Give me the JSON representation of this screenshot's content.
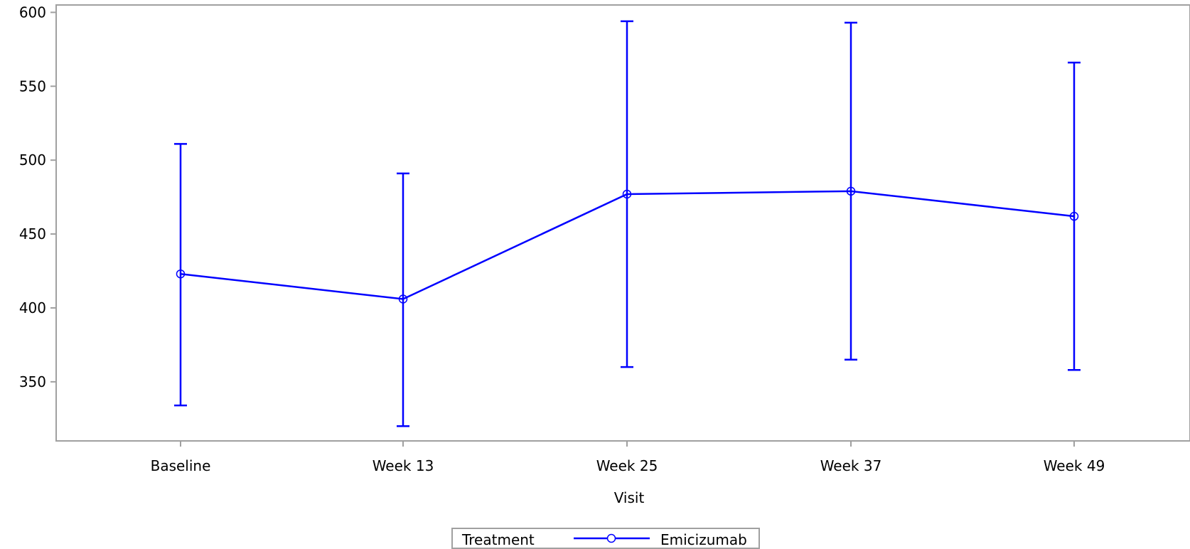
{
  "chart_data": {
    "type": "line",
    "xlabel": "Visit",
    "ylabel": "",
    "categories": [
      "Baseline",
      "Week 13",
      "Week 25",
      "Week 37",
      "Week 49"
    ],
    "ylim": [
      310,
      605
    ],
    "yticks": [
      350,
      400,
      450,
      500,
      550,
      600
    ],
    "grid": false,
    "series": [
      {
        "name": "Emicizumab",
        "values": [
          423,
          406,
          477,
          479,
          462
        ],
        "lower": [
          334,
          320,
          360,
          365,
          358
        ],
        "upper": [
          511,
          491,
          594,
          593,
          566
        ],
        "color": "#0000ff",
        "marker": "circle"
      }
    ],
    "legend": {
      "title": "Treatment",
      "placement": "bottom-center"
    }
  }
}
